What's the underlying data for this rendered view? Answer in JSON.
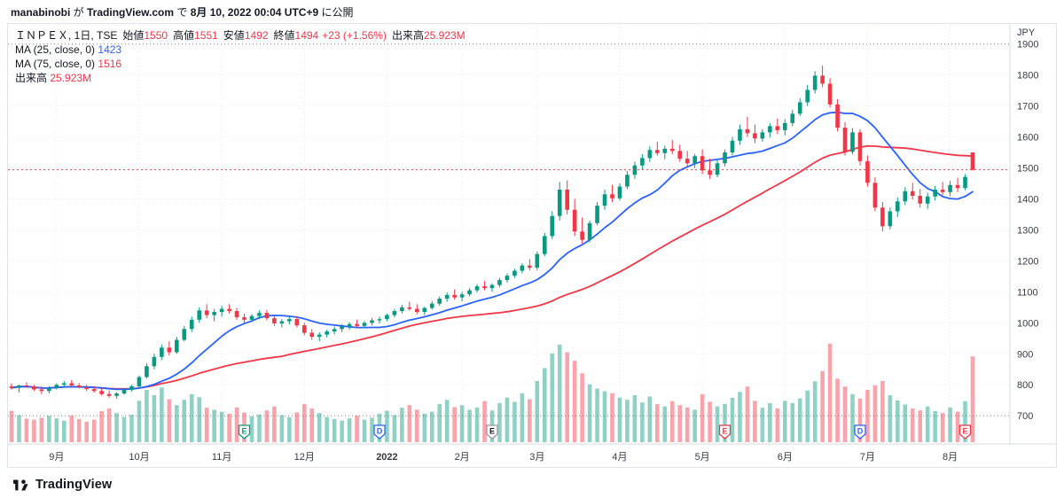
{
  "header": {
    "parts": [
      {
        "text": "manabinobi",
        "bold": true
      },
      {
        "text": " が ",
        "bold": false
      },
      {
        "text": "TradingView.com",
        "bold": true
      },
      {
        "text": " で ",
        "bold": false
      },
      {
        "text": "8月 10, 2022 00:04 UTC+9",
        "bold": true
      },
      {
        "text": " に公開",
        "bold": false
      }
    ]
  },
  "legend": {
    "symbol": "ＩＮＰＥＸ, 1日, TSE",
    "open_label": "始値",
    "open": "1550",
    "high_label": "高値",
    "high": "1551",
    "low_label": "安値",
    "low": "1492",
    "close_label": "終値",
    "close": "1494",
    "change": "+23 (+1.56%)",
    "volume_label": "出来高",
    "volume": "25.923M",
    "ma1_label": "MA (25, close, 0)",
    "ma1_value": "1423",
    "ma2_label": "MA (75, close, 0)",
    "ma2_value": "1516",
    "vol_row_label": "出来高",
    "vol_row_value": "25.923M"
  },
  "footer": {
    "brand": "TradingView"
  },
  "chart_data": {
    "type": "candlestick",
    "symbol": "ＩＮＰＥＸ",
    "interval": "1日",
    "exchange": "TSE",
    "unit_label": "JPY",
    "last": {
      "open": 1550,
      "high": 1551,
      "low": 1492,
      "close": 1494,
      "change": "+23 (+1.56%)",
      "volume_M": 25.923
    },
    "last_close": 1494,
    "ylim": [
      609,
      1965
    ],
    "y_ticks": [
      1900,
      1800,
      1700,
      1600,
      1500,
      1400,
      1300,
      1200,
      1100,
      1000,
      900,
      800,
      700
    ],
    "y_emphasis": [
      1900,
      700
    ],
    "vol_max_M": 30,
    "months": [
      {
        "label": "9月",
        "i": 6
      },
      {
        "label": "10月",
        "i": 17
      },
      {
        "label": "11月",
        "i": 28
      },
      {
        "label": "12月",
        "i": 39
      },
      {
        "label": "2022",
        "i": 50,
        "bold": true
      },
      {
        "label": "2月",
        "i": 60
      },
      {
        "label": "3月",
        "i": 70
      },
      {
        "label": "4月",
        "i": 81
      },
      {
        "label": "5月",
        "i": 92
      },
      {
        "label": "6月",
        "i": 103
      },
      {
        "label": "7月",
        "i": 114
      },
      {
        "label": "8月",
        "i": 125
      }
    ],
    "ma": [
      {
        "label": "MA (25, close, 0)",
        "value": 1423,
        "color": "#2962ff",
        "render_window": 12
      },
      {
        "label": "MA (75, close, 0)",
        "value": 1516,
        "color": "#f23645",
        "render_window": 37
      }
    ],
    "badges": [
      {
        "letter": "E",
        "i": 31,
        "color": "#089981"
      },
      {
        "letter": "D",
        "i": 49,
        "color": "#2962ff"
      },
      {
        "letter": "E",
        "i": 64,
        "color": "#9598a1",
        "text_color": "#131722"
      },
      {
        "letter": "E",
        "i": 95,
        "color": "#f23645"
      },
      {
        "letter": "D",
        "i": 113,
        "color": "#2962ff"
      },
      {
        "letter": "E",
        "i": 127,
        "color": "#f23645"
      }
    ],
    "colors": {
      "up": "#089981",
      "down": "#f23645",
      "vol_up": "rgba(8,153,129,0.45)",
      "vol_down": "rgba(242,54,69,0.45)",
      "last_line": "#f23645",
      "grid": "#e9ebf0",
      "grid_emphasis": "#7f828a",
      "axis_text": "#363a45",
      "separator": "#d6d9de"
    },
    "candles": [
      [
        795,
        805,
        785,
        790,
        9.5
      ],
      [
        790,
        800,
        775,
        798,
        8.2
      ],
      [
        798,
        808,
        790,
        795,
        7.1
      ],
      [
        795,
        800,
        780,
        785,
        6.8
      ],
      [
        785,
        795,
        770,
        780,
        7.4
      ],
      [
        780,
        795,
        772,
        790,
        8.0
      ],
      [
        790,
        805,
        785,
        800,
        7.2
      ],
      [
        800,
        812,
        792,
        805,
        6.5
      ],
      [
        805,
        815,
        795,
        798,
        8.1
      ],
      [
        798,
        806,
        788,
        792,
        7.0
      ],
      [
        792,
        800,
        780,
        786,
        6.2
      ],
      [
        786,
        794,
        775,
        780,
        6.8
      ],
      [
        780,
        790,
        765,
        770,
        9.4
      ],
      [
        770,
        782,
        758,
        764,
        10.2
      ],
      [
        764,
        776,
        755,
        772,
        8.8
      ],
      [
        772,
        788,
        768,
        784,
        7.6
      ],
      [
        784,
        800,
        778,
        795,
        8.3
      ],
      [
        795,
        830,
        790,
        825,
        12.5
      ],
      [
        825,
        870,
        820,
        860,
        15.8
      ],
      [
        860,
        900,
        850,
        890,
        14.2
      ],
      [
        890,
        930,
        880,
        920,
        16.5
      ],
      [
        920,
        940,
        895,
        905,
        13.0
      ],
      [
        905,
        955,
        900,
        945,
        11.2
      ],
      [
        945,
        990,
        940,
        980,
        12.8
      ],
      [
        980,
        1020,
        970,
        1010,
        14.5
      ],
      [
        1010,
        1050,
        1000,
        1040,
        13.6
      ],
      [
        1040,
        1060,
        1015,
        1025,
        10.4
      ],
      [
        1025,
        1045,
        1005,
        1035,
        9.8
      ],
      [
        1035,
        1055,
        1020,
        1045,
        9.2
      ],
      [
        1045,
        1060,
        1030,
        1038,
        8.6
      ],
      [
        1038,
        1048,
        1010,
        1018,
        10.5
      ],
      [
        1018,
        1030,
        1000,
        1010,
        9.0
      ],
      [
        1010,
        1028,
        1002,
        1022,
        7.8
      ],
      [
        1022,
        1040,
        1012,
        1032,
        8.4
      ],
      [
        1032,
        1042,
        1008,
        1015,
        9.6
      ],
      [
        1015,
        1025,
        990,
        998,
        10.8
      ],
      [
        998,
        1012,
        985,
        1005,
        8.2
      ],
      [
        1005,
        1020,
        995,
        1012,
        7.5
      ],
      [
        1012,
        1022,
        985,
        992,
        9.0
      ],
      [
        992,
        1000,
        960,
        968,
        11.5
      ],
      [
        968,
        980,
        945,
        955,
        10.2
      ],
      [
        955,
        970,
        940,
        962,
        8.8
      ],
      [
        962,
        978,
        952,
        972,
        7.6
      ],
      [
        972,
        988,
        962,
        980,
        7.0
      ],
      [
        980,
        995,
        970,
        988,
        6.5
      ],
      [
        988,
        1002,
        978,
        996,
        7.2
      ],
      [
        996,
        1010,
        985,
        990,
        8.0
      ],
      [
        990,
        1005,
        982,
        1000,
        6.8
      ],
      [
        1000,
        1015,
        992,
        1008,
        7.4
      ],
      [
        1008,
        1020,
        998,
        1012,
        8.6
      ],
      [
        1012,
        1030,
        1005,
        1025,
        9.5
      ],
      [
        1025,
        1045,
        1018,
        1038,
        8.2
      ],
      [
        1038,
        1058,
        1030,
        1050,
        10.4
      ],
      [
        1050,
        1068,
        1040,
        1045,
        11.2
      ],
      [
        1045,
        1060,
        1028,
        1035,
        9.8
      ],
      [
        1035,
        1052,
        1025,
        1048,
        8.6
      ],
      [
        1048,
        1070,
        1042,
        1062,
        9.2
      ],
      [
        1062,
        1085,
        1055,
        1078,
        11.5
      ],
      [
        1078,
        1098,
        1068,
        1090,
        12.8
      ],
      [
        1090,
        1108,
        1075,
        1082,
        10.6
      ],
      [
        1082,
        1100,
        1070,
        1092,
        11.2
      ],
      [
        1092,
        1112,
        1085,
        1105,
        9.8
      ],
      [
        1105,
        1125,
        1098,
        1118,
        10.5
      ],
      [
        1118,
        1135,
        1105,
        1112,
        12.4
      ],
      [
        1112,
        1128,
        1100,
        1122,
        9.6
      ],
      [
        1122,
        1145,
        1115,
        1138,
        11.8
      ],
      [
        1138,
        1160,
        1130,
        1152,
        13.5
      ],
      [
        1152,
        1175,
        1145,
        1168,
        12.2
      ],
      [
        1168,
        1192,
        1160,
        1185,
        14.8
      ],
      [
        1185,
        1205,
        1170,
        1178,
        13.0
      ],
      [
        1178,
        1230,
        1170,
        1222,
        18.5
      ],
      [
        1222,
        1290,
        1215,
        1280,
        22.4
      ],
      [
        1280,
        1360,
        1270,
        1345,
        26.8
      ],
      [
        1345,
        1455,
        1330,
        1430,
        29.5
      ],
      [
        1430,
        1460,
        1350,
        1365,
        27.2
      ],
      [
        1365,
        1400,
        1280,
        1295,
        24.6
      ],
      [
        1295,
        1340,
        1255,
        1268,
        20.8
      ],
      [
        1268,
        1330,
        1260,
        1322,
        17.5
      ],
      [
        1322,
        1390,
        1315,
        1378,
        16.2
      ],
      [
        1378,
        1430,
        1365,
        1415,
        15.4
      ],
      [
        1415,
        1445,
        1390,
        1402,
        14.8
      ],
      [
        1402,
        1450,
        1395,
        1440,
        13.5
      ],
      [
        1440,
        1490,
        1432,
        1478,
        12.8
      ],
      [
        1478,
        1520,
        1465,
        1508,
        14.2
      ],
      [
        1508,
        1545,
        1495,
        1532,
        12.0
      ],
      [
        1532,
        1570,
        1520,
        1558,
        13.8
      ],
      [
        1558,
        1585,
        1540,
        1548,
        11.5
      ],
      [
        1548,
        1572,
        1528,
        1562,
        10.8
      ],
      [
        1562,
        1590,
        1545,
        1555,
        12.4
      ],
      [
        1555,
        1575,
        1520,
        1530,
        11.2
      ],
      [
        1530,
        1555,
        1505,
        1515,
        10.5
      ],
      [
        1515,
        1545,
        1500,
        1538,
        9.8
      ],
      [
        1538,
        1560,
        1480,
        1492,
        14.5
      ],
      [
        1492,
        1530,
        1465,
        1478,
        12.2
      ],
      [
        1478,
        1525,
        1470,
        1515,
        10.8
      ],
      [
        1515,
        1560,
        1505,
        1550,
        11.6
      ],
      [
        1550,
        1600,
        1540,
        1588,
        13.4
      ],
      [
        1588,
        1640,
        1575,
        1625,
        15.2
      ],
      [
        1625,
        1665,
        1600,
        1612,
        16.8
      ],
      [
        1612,
        1640,
        1580,
        1595,
        12.5
      ],
      [
        1595,
        1625,
        1585,
        1615,
        10.4
      ],
      [
        1615,
        1645,
        1598,
        1635,
        11.8
      ],
      [
        1635,
        1660,
        1610,
        1622,
        10.2
      ],
      [
        1622,
        1658,
        1605,
        1645,
        12.5
      ],
      [
        1645,
        1688,
        1635,
        1675,
        11.8
      ],
      [
        1675,
        1725,
        1668,
        1712,
        13.2
      ],
      [
        1712,
        1768,
        1700,
        1752,
        15.6
      ],
      [
        1752,
        1812,
        1740,
        1798,
        18.4
      ],
      [
        1798,
        1830,
        1760,
        1772,
        21.5
      ],
      [
        1772,
        1790,
        1695,
        1705,
        29.8
      ],
      [
        1705,
        1722,
        1618,
        1630,
        19.2
      ],
      [
        1630,
        1648,
        1540,
        1552,
        16.8
      ],
      [
        1552,
        1628,
        1545,
        1615,
        14.5
      ],
      [
        1615,
        1625,
        1508,
        1522,
        13.2
      ],
      [
        1522,
        1540,
        1440,
        1452,
        15.8
      ],
      [
        1452,
        1470,
        1360,
        1372,
        17.2
      ],
      [
        1372,
        1390,
        1295,
        1312,
        18.5
      ],
      [
        1312,
        1372,
        1302,
        1360,
        14.2
      ],
      [
        1360,
        1405,
        1342,
        1392,
        12.6
      ],
      [
        1392,
        1438,
        1380,
        1425,
        11.4
      ],
      [
        1425,
        1452,
        1398,
        1410,
        10.2
      ],
      [
        1410,
        1432,
        1372,
        1385,
        9.6
      ],
      [
        1385,
        1420,
        1368,
        1408,
        10.8
      ],
      [
        1408,
        1442,
        1395,
        1430,
        9.4
      ],
      [
        1430,
        1455,
        1412,
        1422,
        8.8
      ],
      [
        1422,
        1458,
        1408,
        1445,
        10.5
      ],
      [
        1445,
        1468,
        1422,
        1435,
        9.2
      ],
      [
        1435,
        1480,
        1428,
        1471,
        12.4
      ],
      [
        1550,
        1551,
        1492,
        1494,
        25.923
      ]
    ]
  }
}
